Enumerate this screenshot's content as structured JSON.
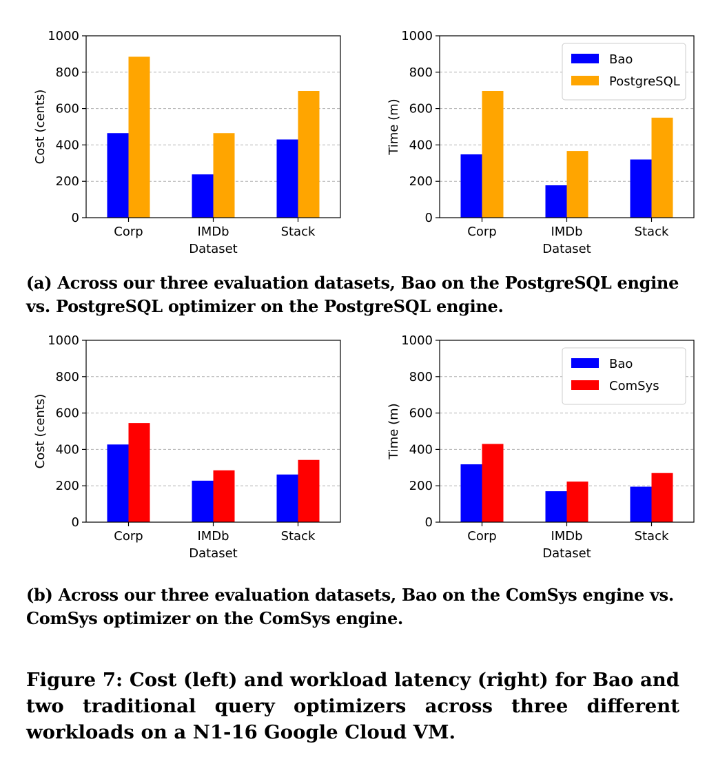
{
  "figure_caption": "Figure 7: Cost (left) and workload latency (right) for Bao and two traditional query optimizers across three different workloads on a N1-16 Google Cloud VM.",
  "subcaptions": {
    "a": "(a) Across our three evaluation datasets, Bao on the PostgreSQL engine vs. PostgreSQL optimizer on the PostgreSQL engine.",
    "b": "(b) Across our three evaluation datasets, Bao on the ComSys engine vs. ComSys optimizer on the ComSys engine."
  },
  "colors": {
    "bao": "#0000ff",
    "postgresql": "#ffa500",
    "comsys": "#ff0000",
    "grid": "#b0b0b0"
  },
  "chart_data": [
    {
      "type": "bar",
      "panel": "a-left",
      "categories": [
        "Corp",
        "IMDb",
        "Stack"
      ],
      "xlabel": "Dataset",
      "ylabel": "Cost (cents)",
      "ylim": [
        0,
        1000
      ],
      "yticks": [
        "0",
        "200",
        "400",
        "600",
        "800",
        "1000"
      ],
      "grid": true,
      "legend": null,
      "series": [
        {
          "name": "Bao",
          "color": "#0000ff",
          "values": [
            465,
            238,
            430
          ]
        },
        {
          "name": "PostgreSQL",
          "color": "#ffa500",
          "values": [
            885,
            465,
            697
          ]
        }
      ]
    },
    {
      "type": "bar",
      "panel": "a-right",
      "categories": [
        "Corp",
        "IMDb",
        "Stack"
      ],
      "xlabel": "Dataset",
      "ylabel": "Time (m)",
      "ylim": [
        0,
        1000
      ],
      "yticks": [
        "0",
        "200",
        "400",
        "600",
        "800",
        "1000"
      ],
      "grid": true,
      "legend": "top-right",
      "series": [
        {
          "name": "Bao",
          "color": "#0000ff",
          "values": [
            348,
            178,
            320
          ]
        },
        {
          "name": "PostgreSQL",
          "color": "#ffa500",
          "values": [
            697,
            367,
            550
          ]
        }
      ]
    },
    {
      "type": "bar",
      "panel": "b-left",
      "categories": [
        "Corp",
        "IMDb",
        "Stack"
      ],
      "xlabel": "Dataset",
      "ylabel": "Cost (cents)",
      "ylim": [
        0,
        1000
      ],
      "yticks": [
        "0",
        "200",
        "400",
        "600",
        "800",
        "1000"
      ],
      "grid": true,
      "legend": null,
      "series": [
        {
          "name": "Bao",
          "color": "#0000ff",
          "values": [
            427,
            228,
            262
          ]
        },
        {
          "name": "ComSys",
          "color": "#ff0000",
          "values": [
            545,
            285,
            342
          ]
        }
      ]
    },
    {
      "type": "bar",
      "panel": "b-right",
      "categories": [
        "Corp",
        "IMDb",
        "Stack"
      ],
      "xlabel": "Dataset",
      "ylabel": "Time (m)",
      "ylim": [
        0,
        1000
      ],
      "yticks": [
        "0",
        "200",
        "400",
        "600",
        "800",
        "1000"
      ],
      "grid": true,
      "legend": "top-right",
      "series": [
        {
          "name": "Bao",
          "color": "#0000ff",
          "values": [
            318,
            170,
            195
          ]
        },
        {
          "name": "ComSys",
          "color": "#ff0000",
          "values": [
            430,
            223,
            270
          ]
        }
      ]
    }
  ]
}
